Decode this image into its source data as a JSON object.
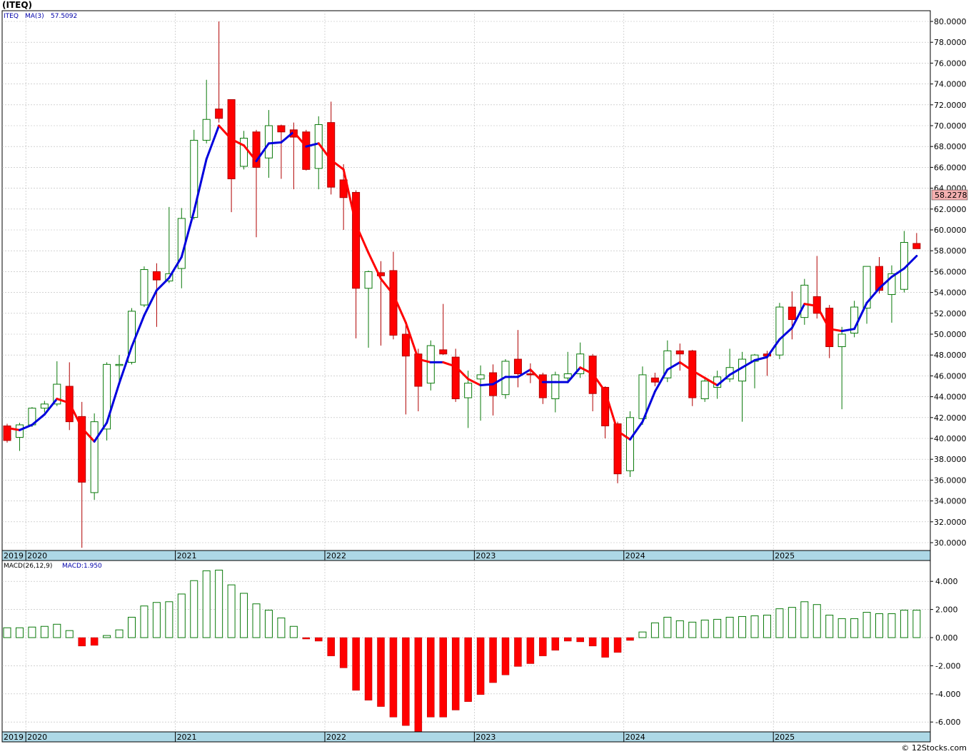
{
  "header": {
    "title": "(ITEQ)"
  },
  "footer": {
    "copyright": "© 12Stocks.com"
  },
  "colors": {
    "up": "#0a7a0a",
    "down": "#ff0000",
    "ma_up": "#0000dd",
    "ma_down": "#ff0000",
    "axis_band": "#add8e6",
    "grid": "#b8b8b8"
  },
  "chart_data": [
    {
      "type": "candlestick",
      "title": "ITEQ",
      "ma_label": "MA(3)",
      "ma_value_label": "57.5092",
      "last_price_label": "58.2278",
      "ylim": [
        29.5,
        81
      ],
      "y_ticks": [
        "80.0000",
        "78.0000",
        "76.0000",
        "74.0000",
        "72.0000",
        "70.0000",
        "68.0000",
        "66.0000",
        "64.0000",
        "62.0000",
        "60.0000",
        "58.0000",
        "56.0000",
        "54.0000",
        "52.0000",
        "50.0000",
        "48.0000",
        "46.0000",
        "44.0000",
        "42.0000",
        "40.0000",
        "38.0000",
        "36.0000",
        "34.0000",
        "32.0000",
        "30.0000"
      ],
      "x_tick_labels": [
        "2019",
        "2020",
        "2021",
        "2022",
        "2023",
        "2024",
        "2025"
      ],
      "candles": [
        {
          "o": 41.2,
          "h": 41.4,
          "l": 39.6,
          "c": 39.8
        },
        {
          "o": 40.1,
          "h": 41.5,
          "l": 38.8,
          "c": 41.3
        },
        {
          "o": 41.3,
          "h": 43.0,
          "l": 41.1,
          "c": 42.9
        },
        {
          "o": 42.9,
          "h": 43.6,
          "l": 42.5,
          "c": 43.3
        },
        {
          "o": 43.3,
          "h": 47.4,
          "l": 43.1,
          "c": 45.2
        },
        {
          "o": 45.0,
          "h": 47.3,
          "l": 40.8,
          "c": 41.6
        },
        {
          "o": 42.1,
          "h": 43.5,
          "l": 29.5,
          "c": 35.8
        },
        {
          "o": 34.8,
          "h": 42.4,
          "l": 34.1,
          "c": 41.6
        },
        {
          "o": 40.9,
          "h": 47.3,
          "l": 39.8,
          "c": 47.1
        },
        {
          "o": 47.0,
          "h": 48.0,
          "l": 45.3,
          "c": 47.1
        },
        {
          "o": 47.3,
          "h": 52.5,
          "l": 47.1,
          "c": 52.2
        },
        {
          "o": 52.8,
          "h": 56.5,
          "l": 52.6,
          "c": 56.2
        },
        {
          "o": 56.0,
          "h": 56.8,
          "l": 50.7,
          "c": 55.2
        },
        {
          "o": 55.1,
          "h": 62.2,
          "l": 54.9,
          "c": 55.8
        },
        {
          "o": 56.3,
          "h": 62.1,
          "l": 54.4,
          "c": 61.1
        },
        {
          "o": 61.2,
          "h": 69.6,
          "l": 61.0,
          "c": 68.6
        },
        {
          "o": 68.6,
          "h": 74.4,
          "l": 68.3,
          "c": 70.6
        },
        {
          "o": 71.6,
          "h": 80.0,
          "l": 70.3,
          "c": 70.7
        },
        {
          "o": 72.5,
          "h": 72.5,
          "l": 61.7,
          "c": 64.9
        },
        {
          "o": 66.1,
          "h": 69.5,
          "l": 65.8,
          "c": 68.8
        },
        {
          "o": 69.4,
          "h": 69.6,
          "l": 59.3,
          "c": 66.0
        },
        {
          "o": 66.9,
          "h": 71.5,
          "l": 65.0,
          "c": 70.0
        },
        {
          "o": 70.0,
          "h": 70.1,
          "l": 64.9,
          "c": 69.4
        },
        {
          "o": 69.6,
          "h": 70.3,
          "l": 63.9,
          "c": 68.9
        },
        {
          "o": 69.4,
          "h": 69.6,
          "l": 65.7,
          "c": 65.8
        },
        {
          "o": 65.9,
          "h": 70.9,
          "l": 63.9,
          "c": 70.1
        },
        {
          "o": 70.3,
          "h": 72.3,
          "l": 63.4,
          "c": 64.1
        },
        {
          "o": 64.8,
          "h": 66.3,
          "l": 60.0,
          "c": 63.1
        },
        {
          "o": 63.6,
          "h": 63.8,
          "l": 49.6,
          "c": 54.4
        },
        {
          "o": 54.4,
          "h": 56.1,
          "l": 48.7,
          "c": 56.0
        },
        {
          "o": 55.9,
          "h": 57.0,
          "l": 48.9,
          "c": 55.6
        },
        {
          "o": 56.1,
          "h": 57.9,
          "l": 49.5,
          "c": 49.9
        },
        {
          "o": 50.0,
          "h": 50.9,
          "l": 42.3,
          "c": 47.9
        },
        {
          "o": 48.1,
          "h": 48.6,
          "l": 42.6,
          "c": 45.0
        },
        {
          "o": 45.3,
          "h": 49.4,
          "l": 44.6,
          "c": 48.9
        },
        {
          "o": 48.5,
          "h": 52.9,
          "l": 48.0,
          "c": 48.1
        },
        {
          "o": 47.8,
          "h": 48.6,
          "l": 43.5,
          "c": 43.8
        },
        {
          "o": 43.9,
          "h": 46.5,
          "l": 41.0,
          "c": 45.3
        },
        {
          "o": 45.7,
          "h": 47.0,
          "l": 41.7,
          "c": 46.1
        },
        {
          "o": 46.3,
          "h": 47.1,
          "l": 42.2,
          "c": 44.1
        },
        {
          "o": 44.2,
          "h": 47.6,
          "l": 43.8,
          "c": 47.4
        },
        {
          "o": 47.6,
          "h": 50.4,
          "l": 44.9,
          "c": 46.2
        },
        {
          "o": 46.2,
          "h": 47.2,
          "l": 45.3,
          "c": 46.1
        },
        {
          "o": 46.1,
          "h": 46.3,
          "l": 43.3,
          "c": 43.9
        },
        {
          "o": 43.8,
          "h": 46.4,
          "l": 42.5,
          "c": 46.1
        },
        {
          "o": 45.8,
          "h": 48.3,
          "l": 45.5,
          "c": 46.2
        },
        {
          "o": 46.2,
          "h": 49.2,
          "l": 45.8,
          "c": 48.1
        },
        {
          "o": 47.9,
          "h": 48.1,
          "l": 42.6,
          "c": 44.3
        },
        {
          "o": 44.9,
          "h": 45.0,
          "l": 40.0,
          "c": 41.2
        },
        {
          "o": 41.4,
          "h": 41.6,
          "l": 35.7,
          "c": 36.6
        },
        {
          "o": 36.9,
          "h": 42.6,
          "l": 36.3,
          "c": 42.0
        },
        {
          "o": 41.9,
          "h": 46.9,
          "l": 41.3,
          "c": 46.1
        },
        {
          "o": 45.8,
          "h": 46.3,
          "l": 45.0,
          "c": 45.4
        },
        {
          "o": 45.8,
          "h": 49.4,
          "l": 45.4,
          "c": 48.4
        },
        {
          "o": 48.4,
          "h": 49.1,
          "l": 46.5,
          "c": 48.1
        },
        {
          "o": 48.4,
          "h": 48.5,
          "l": 43.1,
          "c": 43.9
        },
        {
          "o": 43.8,
          "h": 45.8,
          "l": 43.5,
          "c": 45.5
        },
        {
          "o": 44.9,
          "h": 46.5,
          "l": 43.8,
          "c": 45.9
        },
        {
          "o": 45.7,
          "h": 48.6,
          "l": 45.4,
          "c": 46.8
        },
        {
          "o": 45.5,
          "h": 48.3,
          "l": 41.6,
          "c": 47.6
        },
        {
          "o": 47.4,
          "h": 48.1,
          "l": 44.8,
          "c": 48.0
        },
        {
          "o": 48.1,
          "h": 48.4,
          "l": 46.0,
          "c": 47.9
        },
        {
          "o": 48.0,
          "h": 53.0,
          "l": 47.6,
          "c": 52.6
        },
        {
          "o": 52.6,
          "h": 54.1,
          "l": 49.5,
          "c": 51.4
        },
        {
          "o": 51.6,
          "h": 55.3,
          "l": 50.9,
          "c": 54.7
        },
        {
          "o": 53.6,
          "h": 57.5,
          "l": 51.5,
          "c": 52.0
        },
        {
          "o": 52.5,
          "h": 52.8,
          "l": 47.7,
          "c": 48.8
        },
        {
          "o": 48.8,
          "h": 50.7,
          "l": 42.8,
          "c": 50.0
        },
        {
          "o": 50.1,
          "h": 53.2,
          "l": 49.7,
          "c": 52.6
        },
        {
          "o": 52.5,
          "h": 56.5,
          "l": 51.0,
          "c": 56.5
        },
        {
          "o": 56.5,
          "h": 57.4,
          "l": 53.9,
          "c": 54.2
        },
        {
          "o": 53.8,
          "h": 56.6,
          "l": 51.1,
          "c": 55.8
        },
        {
          "o": 54.3,
          "h": 59.9,
          "l": 54.0,
          "c": 58.8
        },
        {
          "o": 58.7,
          "h": 59.7,
          "l": 58.2,
          "c": 58.2
        }
      ],
      "ma3": [
        41.0,
        40.8,
        41.3,
        42.3,
        43.8,
        43.4,
        41.0,
        39.7,
        41.5,
        45.3,
        48.8,
        51.8,
        54.2,
        55.4,
        57.4,
        61.8,
        66.8,
        70.0,
        68.7,
        68.1,
        66.6,
        68.3,
        68.4,
        69.4,
        68.0,
        68.3,
        66.7,
        65.8,
        60.5,
        57.8,
        55.3,
        53.8,
        51.1,
        47.6,
        47.3,
        47.3,
        46.9,
        45.7,
        45.1,
        45.2,
        45.9,
        45.9,
        46.6,
        45.4,
        45.4,
        45.4,
        46.8,
        46.2,
        44.5,
        40.7,
        39.9,
        41.6,
        44.5,
        46.6,
        47.3,
        46.5,
        45.8,
        45.1,
        46.1,
        46.8,
        47.5,
        47.8,
        49.5,
        50.6,
        52.9,
        52.7,
        50.5,
        50.3,
        50.5,
        53.0,
        54.4,
        55.5,
        56.3,
        57.5
      ],
      "macd": {
        "label": "MACD(26,12,9)",
        "value_label": "MACD:1.950",
        "ylim": [
          -6.8,
          5
        ],
        "y_ticks": [
          "4.000",
          "2.000",
          "0.000",
          "-2.000",
          "-4.000",
          "-6.000"
        ],
        "values": [
          0.7,
          0.7,
          0.75,
          0.8,
          0.95,
          0.5,
          -0.6,
          -0.55,
          0.15,
          0.55,
          1.45,
          2.25,
          2.5,
          2.55,
          3.1,
          4.05,
          4.75,
          4.8,
          3.75,
          3.15,
          2.4,
          1.95,
          1.4,
          0.8,
          -0.1,
          -0.25,
          -1.3,
          -2.15,
          -3.75,
          -4.45,
          -4.9,
          -5.65,
          -6.25,
          -6.75,
          -5.65,
          -5.65,
          -5.15,
          -4.55,
          -4.05,
          -3.2,
          -2.65,
          -2.05,
          -1.85,
          -1.3,
          -0.9,
          -0.25,
          -0.3,
          -0.6,
          -1.4,
          -1.05,
          -0.2,
          0.4,
          1.05,
          1.45,
          1.2,
          1.1,
          1.25,
          1.3,
          1.45,
          1.5,
          1.55,
          1.6,
          2.05,
          2.15,
          2.55,
          2.35,
          1.6,
          1.35,
          1.35,
          1.8,
          1.7,
          1.7,
          1.95,
          1.95
        ]
      }
    }
  ]
}
